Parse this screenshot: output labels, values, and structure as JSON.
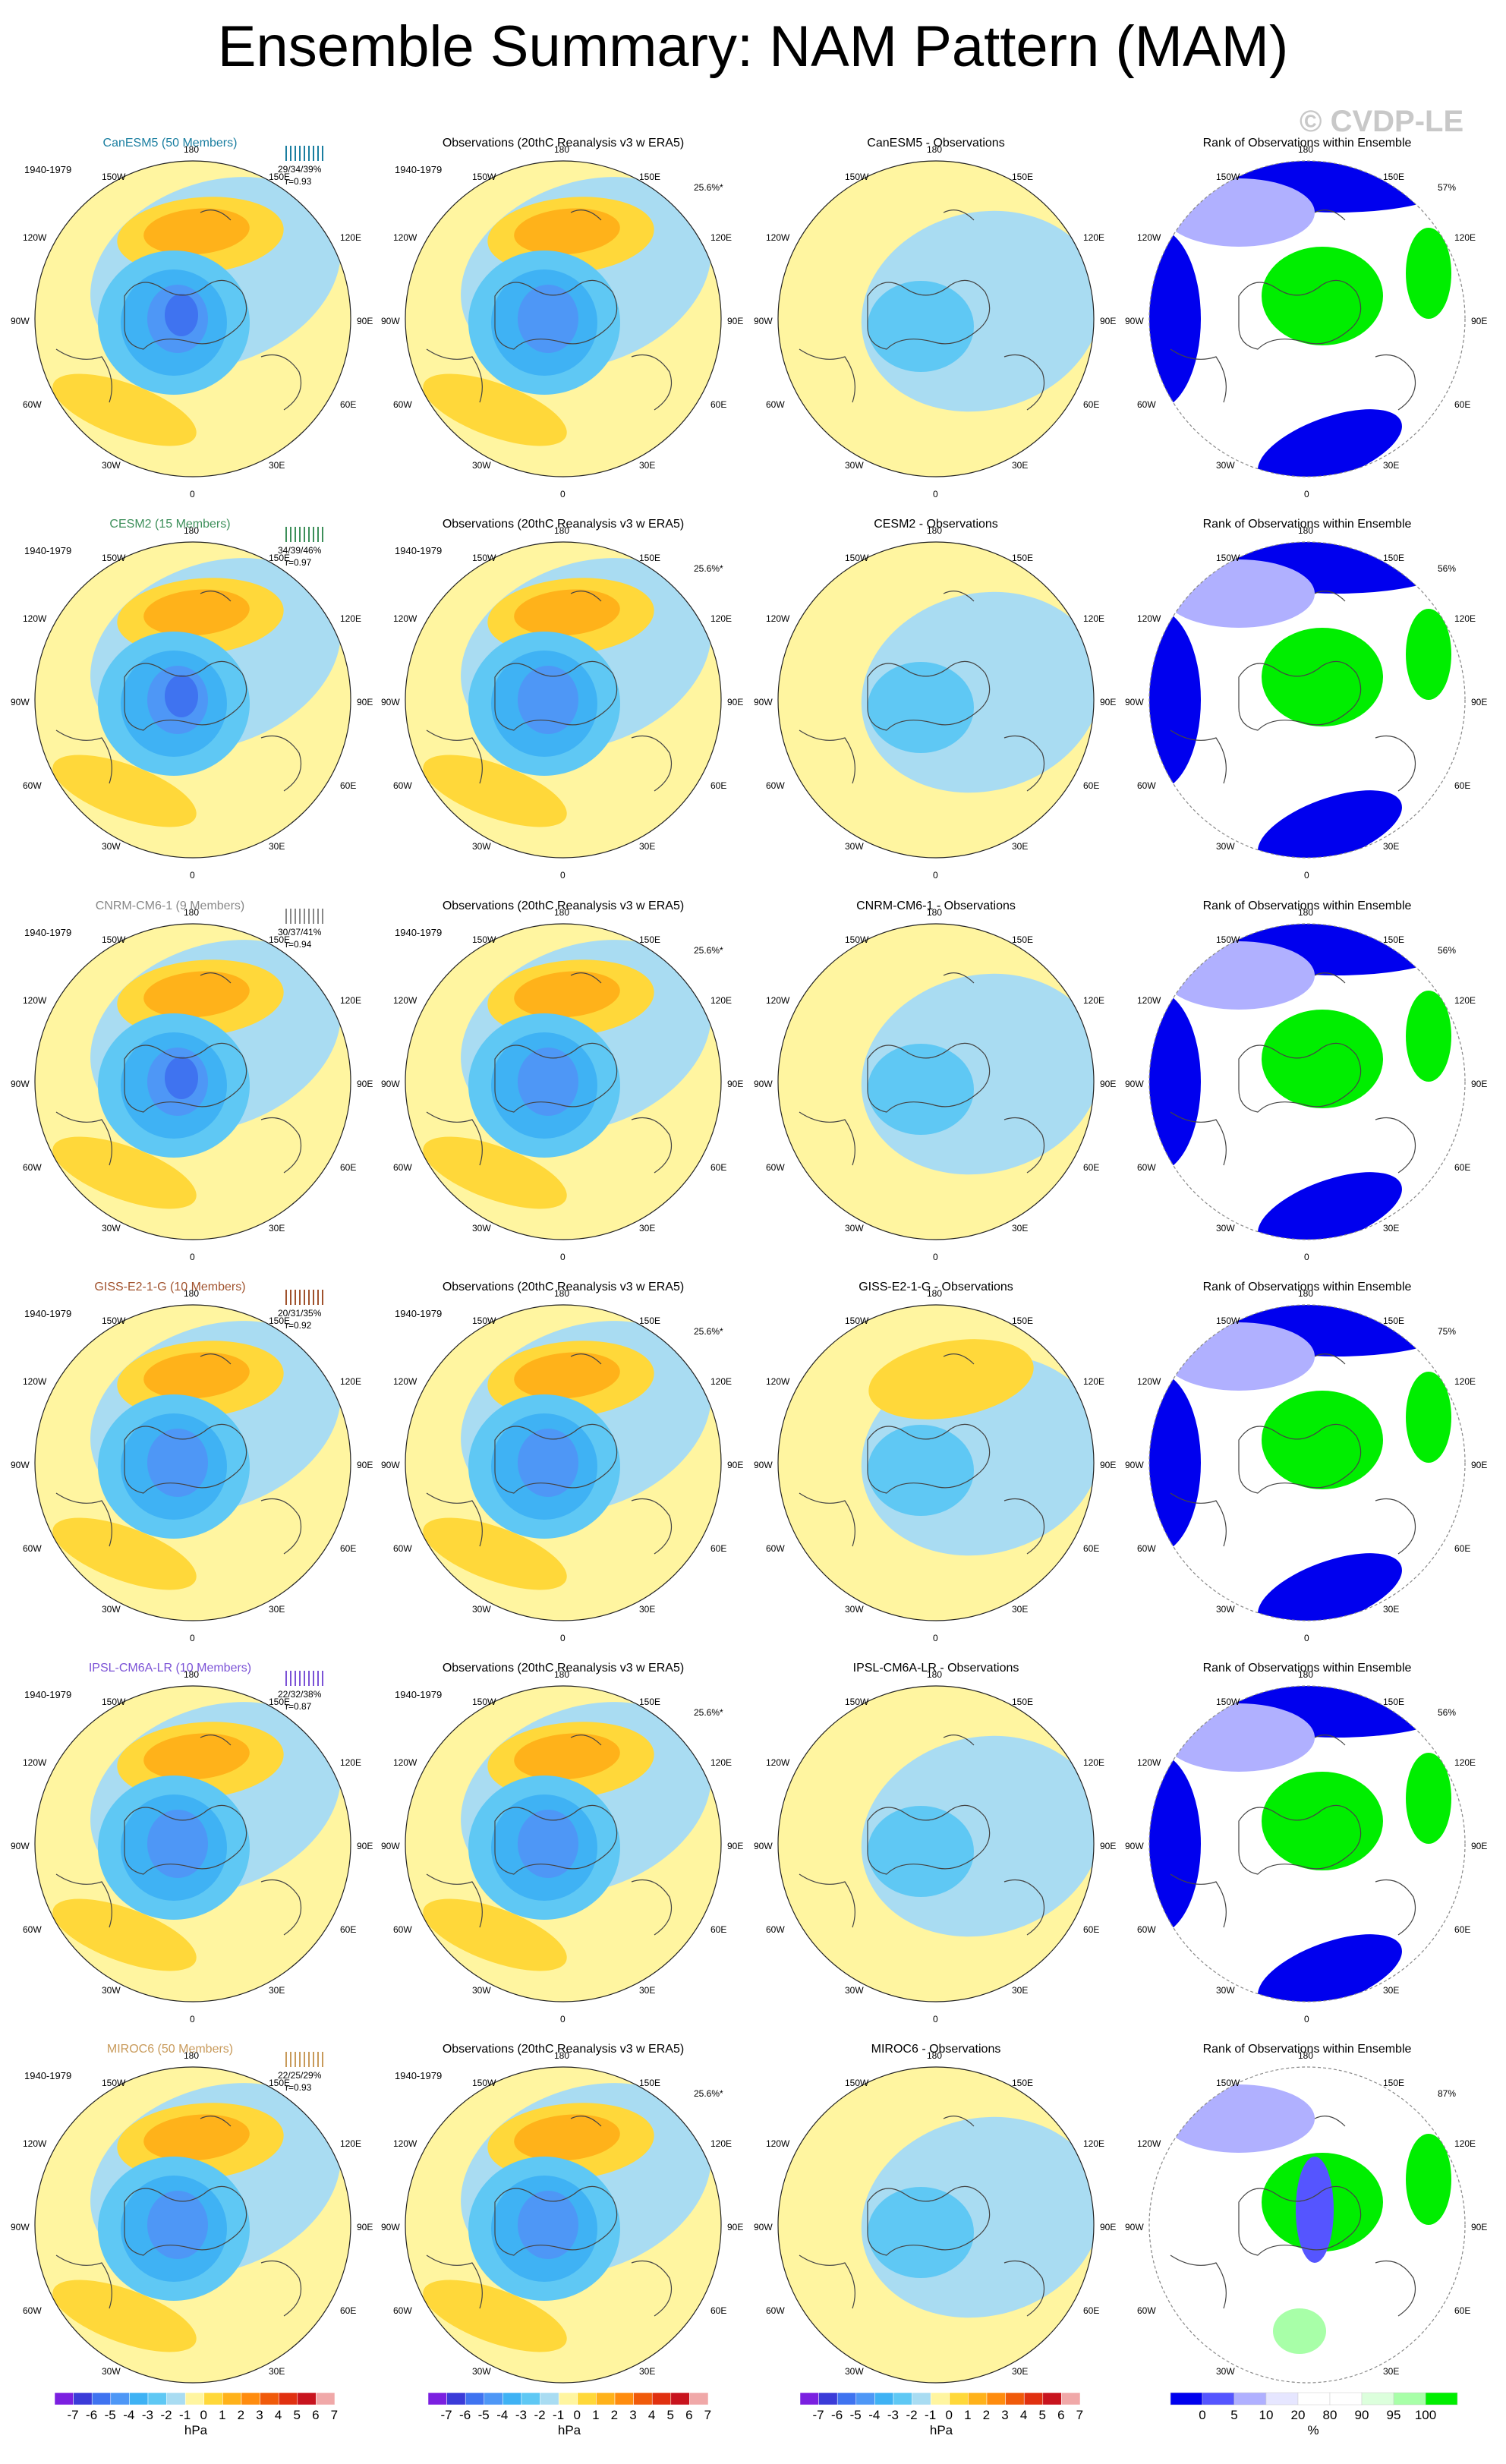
{
  "title": "Ensemble Summary: NAM Pattern (MAM)",
  "watermark": "© CVDP-LE",
  "period": "1940-1979",
  "obs_title": "Observations (20thC Reanalysis v3 w ERA5)",
  "obs_pct": "25.6%*",
  "rank_title": "Rank of Observations within Ensemble",
  "lon_labels": {
    "top": "180",
    "ul": "150W",
    "ur": "150E",
    "lu": "120W",
    "ru": "120E",
    "l": "90W",
    "r": "90E",
    "ll": "60W",
    "rl": "60E",
    "bl": "30W",
    "br": "30E",
    "bottom": "0"
  },
  "colors": {
    "hpa": [
      "#7b1fe0",
      "#3b3bd8",
      "#3f73f0",
      "#4e97f6",
      "#3fb2f4",
      "#5fc8f4",
      "#a9dcf2",
      "#fff5a0",
      "#ffd83a",
      "#ffb21a",
      "#ff8c0e",
      "#f05a0a",
      "#e03010",
      "#c8141e",
      "#f0a8a8"
    ],
    "rank": [
      "#0000ee",
      "#5555ff",
      "#b0b0ff",
      "#e6e6ff",
      "#ffffff",
      "#ffffff",
      "#dcffdc",
      "#a8ffa8",
      "#00ee00"
    ]
  },
  "chart_data": [
    {
      "type": "heatmap",
      "title": "CanESM5 (50 Members)",
      "model_color": "#1a7ea0",
      "stats": "29/34/39%",
      "r": "r=0.93"
    },
    {
      "type": "heatmap",
      "title": "Observations (20thC Reanalysis v3 w ERA5)",
      "pct": "25.6%*"
    },
    {
      "type": "heatmap",
      "title": "CanESM5 - Observations"
    },
    {
      "type": "heatmap",
      "title": "Rank of Observations within Ensemble",
      "pct": "57%"
    },
    {
      "type": "heatmap",
      "title": "CESM2 (15 Members)",
      "model_color": "#3d8f5a",
      "stats": "34/39/46%",
      "r": "r=0.97"
    },
    {
      "type": "heatmap",
      "title": "Observations (20thC Reanalysis v3 w ERA5)",
      "pct": "25.6%*"
    },
    {
      "type": "heatmap",
      "title": "CESM2 - Observations"
    },
    {
      "type": "heatmap",
      "title": "Rank of Observations within Ensemble",
      "pct": "56%"
    },
    {
      "type": "heatmap",
      "title": "CNRM-CM6-1 (9 Members)",
      "model_color": "#888888",
      "stats": "30/37/41%",
      "r": "r=0.94"
    },
    {
      "type": "heatmap",
      "title": "Observations (20thC Reanalysis v3 w ERA5)",
      "pct": "25.6%*"
    },
    {
      "type": "heatmap",
      "title": "CNRM-CM6-1 - Observations"
    },
    {
      "type": "heatmap",
      "title": "Rank of Observations within Ensemble",
      "pct": "56%"
    },
    {
      "type": "heatmap",
      "title": "GISS-E2-1-G (10 Members)",
      "model_color": "#a0522d",
      "stats": "20/31/35%",
      "r": "r=0.92"
    },
    {
      "type": "heatmap",
      "title": "Observations (20thC Reanalysis v3 w ERA5)",
      "pct": "25.6%*"
    },
    {
      "type": "heatmap",
      "title": "GISS-E2-1-G - Observations"
    },
    {
      "type": "heatmap",
      "title": "Rank of Observations within Ensemble",
      "pct": "75%"
    },
    {
      "type": "heatmap",
      "title": "IPSL-CM6A-LR (10 Members)",
      "model_color": "#7b52d6",
      "stats": "22/32/38%",
      "r": "r=0.87"
    },
    {
      "type": "heatmap",
      "title": "Observations (20thC Reanalysis v3 w ERA5)",
      "pct": "25.6%*"
    },
    {
      "type": "heatmap",
      "title": "IPSL-CM6A-LR - Observations"
    },
    {
      "type": "heatmap",
      "title": "Rank of Observations within Ensemble",
      "pct": "56%"
    },
    {
      "type": "heatmap",
      "title": "MIROC6 (50 Members)",
      "model_color": "#c89a5a",
      "stats": "22/25/29%",
      "r": "r=0.93"
    },
    {
      "type": "heatmap",
      "title": "Observations (20thC Reanalysis v3 w ERA5)",
      "pct": "25.6%*"
    },
    {
      "type": "heatmap",
      "title": "MIROC6 - Observations"
    },
    {
      "type": "heatmap",
      "title": "Rank of Observations within Ensemble",
      "pct": "87%"
    }
  ],
  "colorbars": {
    "hpa": {
      "labels": [
        "-7",
        "-6",
        "-5",
        "-4",
        "-3",
        "-2",
        "-1",
        "0",
        "1",
        "2",
        "3",
        "4",
        "5",
        "6",
        "7"
      ],
      "unit": "hPa"
    },
    "rank": {
      "labels": [
        "0",
        "5",
        "10",
        "20",
        "80",
        "90",
        "95",
        "100"
      ],
      "unit": "%"
    }
  }
}
